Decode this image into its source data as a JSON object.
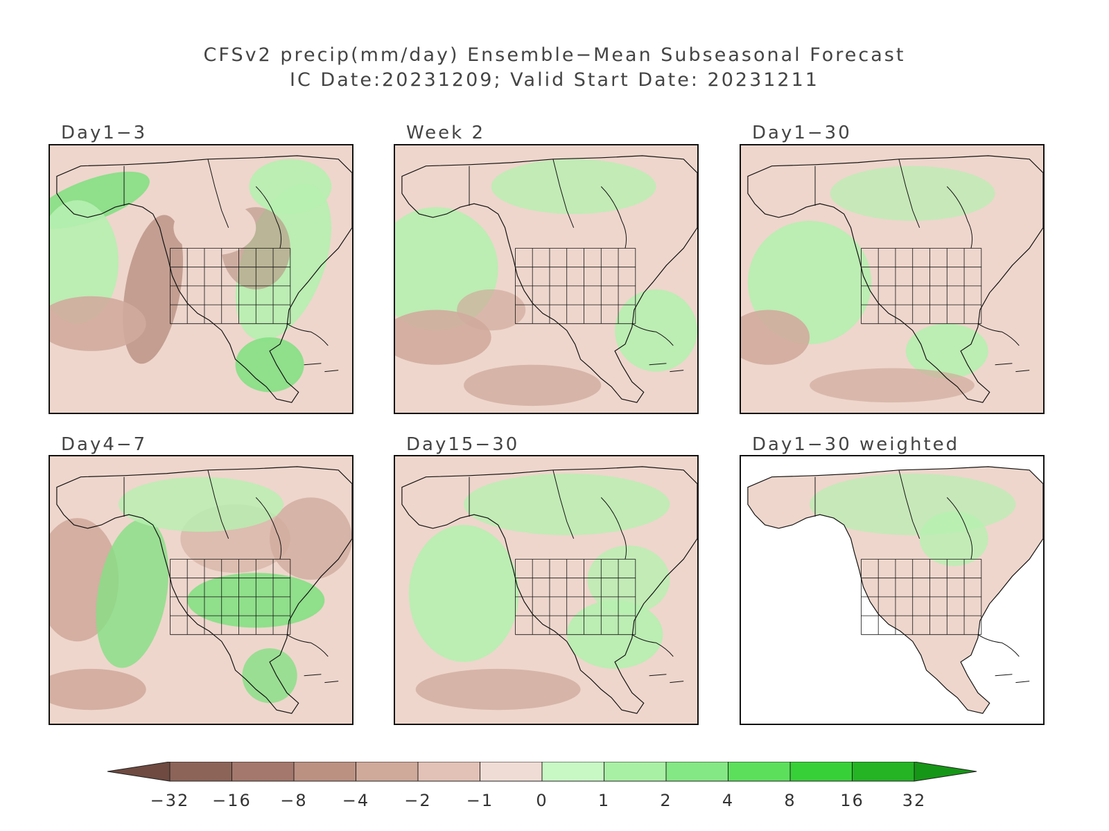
{
  "title": {
    "line1": "CFSv2 precip(mm/day) Ensemble−Mean Subseasonal Forecast",
    "line2": "IC Date:20231209; Valid Start Date: 20231211"
  },
  "panels": [
    {
      "id": "day1-3",
      "label": "Day1−3",
      "style": "mixed-strong-green"
    },
    {
      "id": "week2",
      "label": "Week 2",
      "style": "mixed-light"
    },
    {
      "id": "day1-30",
      "label": "Day1−30",
      "style": "mixed-light"
    },
    {
      "id": "day4-7",
      "label": "Day4−7",
      "style": "mixed-strong-brown"
    },
    {
      "id": "day15-30",
      "label": "Day15−30",
      "style": "mixed-light"
    },
    {
      "id": "day1-30-weighted",
      "label": "Day1−30 weighted",
      "style": "land-only"
    }
  ],
  "colorbar": {
    "ticks": [
      "−32",
      "−16",
      "−8",
      "−4",
      "−2",
      "−1",
      "0",
      "1",
      "2",
      "4",
      "8",
      "16",
      "32"
    ],
    "colors": [
      "#6e4a40",
      "#8c6458",
      "#a4786c",
      "#bb9182",
      "#cfa99a",
      "#e2c2b6",
      "#efdcd4",
      "#c8f8c4",
      "#a8f0a4",
      "#84e884",
      "#5ce05c",
      "#38d038",
      "#24b424",
      "#169616"
    ]
  },
  "map_colors": {
    "brown_dark": "#b89082",
    "brown_mid": "#d0ab9d",
    "brown_light": "#eed6cc",
    "green_light": "#b6f0b0",
    "green_mid": "#84e084",
    "green_dark": "#40c040",
    "coast": "#111111"
  }
}
